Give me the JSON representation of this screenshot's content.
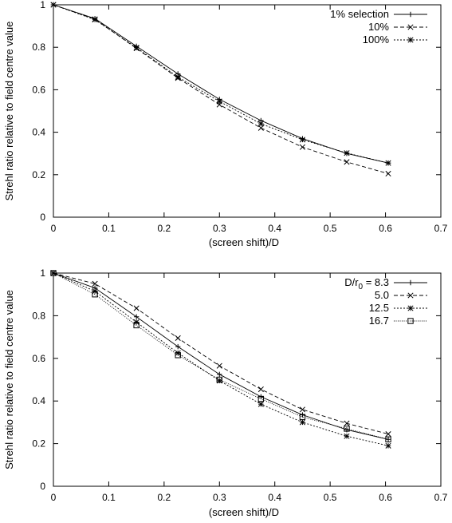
{
  "chart_data": [
    {
      "type": "line",
      "xlabel": "(screen shift)/D",
      "ylabel": "Strehl ratio relative to field centre value",
      "xlim": [
        0,
        0.7
      ],
      "ylim": [
        0,
        1
      ],
      "xticks": [
        "0",
        "0.1",
        "0.2",
        "0.3",
        "0.4",
        "0.5",
        "0.6",
        "0.7"
      ],
      "yticks": [
        "0",
        "0.2",
        "0.4",
        "0.6",
        "0.8",
        "1"
      ],
      "grid": false,
      "legend_position": "top-right",
      "x": [
        0,
        0.075,
        0.15,
        0.225,
        0.3,
        0.375,
        0.45,
        0.53,
        0.605
      ],
      "series": [
        {
          "name": "1% selection",
          "marker": "plus",
          "dash": "solid",
          "values": [
            1.0,
            0.935,
            0.805,
            0.675,
            0.555,
            0.455,
            0.37,
            0.3,
            0.255
          ]
        },
        {
          "name": "10%",
          "marker": "cross",
          "dash": "dashed",
          "values": [
            1.0,
            0.932,
            0.795,
            0.655,
            0.53,
            0.42,
            0.33,
            0.26,
            0.205
          ]
        },
        {
          "name": "100%",
          "marker": "star",
          "dash": "dotted",
          "values": [
            1.0,
            0.93,
            0.798,
            0.66,
            0.545,
            0.44,
            0.365,
            0.302,
            0.255
          ]
        }
      ]
    },
    {
      "type": "line",
      "xlabel": "(screen shift)/D",
      "ylabel": "Strehl ratio relative to field centre value",
      "xlim": [
        0,
        0.7
      ],
      "ylim": [
        0,
        1
      ],
      "xticks": [
        "0",
        "0.1",
        "0.2",
        "0.3",
        "0.4",
        "0.5",
        "0.6",
        "0.7"
      ],
      "yticks": [
        "0",
        "0.2",
        "0.4",
        "0.6",
        "0.8",
        "1"
      ],
      "grid": false,
      "legend_position": "top-right",
      "x": [
        0,
        0.075,
        0.15,
        0.225,
        0.3,
        0.375,
        0.45,
        0.53,
        0.605
      ],
      "series": [
        {
          "name": "D/r0 = 8.3",
          "name_base": "D/r",
          "name_sub": "0",
          "name_rest": " = 8.3",
          "marker": "plus",
          "dash": "solid",
          "values": [
            1.0,
            0.93,
            0.795,
            0.655,
            0.525,
            0.42,
            0.335,
            0.265,
            0.22
          ]
        },
        {
          "name": "5.0",
          "marker": "cross",
          "dash": "dashed",
          "values": [
            1.0,
            0.95,
            0.835,
            0.695,
            0.565,
            0.455,
            0.36,
            0.295,
            0.245
          ]
        },
        {
          "name": "12.5",
          "marker": "star",
          "dash": "dotted",
          "values": [
            1.0,
            0.915,
            0.77,
            0.625,
            0.495,
            0.385,
            0.3,
            0.235,
            0.19
          ]
        },
        {
          "name": "16.7",
          "marker": "square",
          "dash": "dotted-fine",
          "values": [
            1.0,
            0.9,
            0.755,
            0.615,
            0.5,
            0.41,
            0.325,
            0.27,
            0.22
          ]
        }
      ]
    }
  ]
}
